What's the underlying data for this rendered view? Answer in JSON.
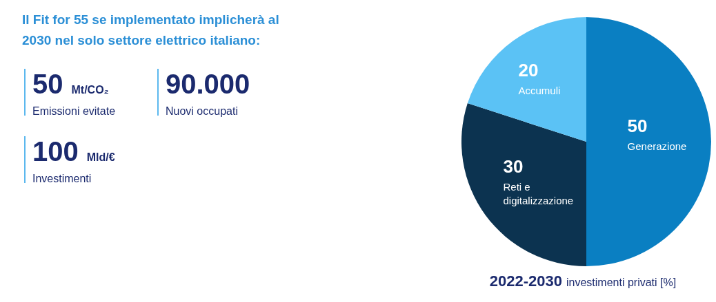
{
  "chart_data": [
    {
      "type": "other",
      "title": "Il Fit for 55 se implementato implicherà al 2030 nel solo settore elettrico italiano:",
      "categories": [
        "Emissioni evitate",
        "Nuovi occupati",
        "Investimenti"
      ],
      "value_labels": [
        "50 Mt/CO₂",
        "90.000",
        "100 Mld/€"
      ]
    },
    {
      "type": "pie",
      "title": "2022-2030 investimenti privati [%]",
      "categories": [
        "Generazione",
        "Reti e digitalizzazione",
        "Accumuli"
      ],
      "values": [
        50,
        30,
        20
      ],
      "colors": [
        "#0a7fc2",
        "#0c3350",
        "#5bc2f5"
      ],
      "data_labels": true
    }
  ]
}
